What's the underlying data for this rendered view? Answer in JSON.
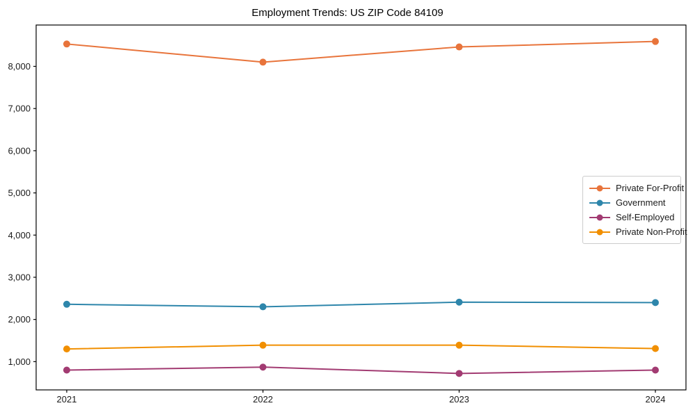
{
  "title": "Employment Trends: US ZIP Code 84109",
  "chart_data": {
    "type": "line",
    "title": "Employment Trends: US ZIP Code 84109",
    "xlabel": "",
    "ylabel": "",
    "categories": [
      "2021",
      "2022",
      "2023",
      "2024"
    ],
    "series": [
      {
        "name": "Private For-Profit",
        "color": "#E8743B",
        "values": [
          8530,
          8100,
          8460,
          8590
        ]
      },
      {
        "name": "Government",
        "color": "#2E86AB",
        "values": [
          2360,
          2300,
          2410,
          2400
        ]
      },
      {
        "name": "Self-Employed",
        "color": "#A23B72",
        "values": [
          800,
          870,
          720,
          800
        ]
      },
      {
        "name": "Private Non-Profit",
        "color": "#F18F01",
        "values": [
          1300,
          1390,
          1390,
          1310
        ]
      }
    ],
    "ylim": [
      330,
      8980
    ],
    "yticks": [
      1000,
      2000,
      3000,
      4000,
      5000,
      6000,
      7000,
      8000
    ],
    "ytick_labels": [
      "1,000",
      "2,000",
      "3,000",
      "4,000",
      "5,000",
      "6,000",
      "7,000",
      "8,000"
    ],
    "grid": false,
    "legend_position": "center-right",
    "marker": "circle",
    "axis_color": "#000000"
  }
}
